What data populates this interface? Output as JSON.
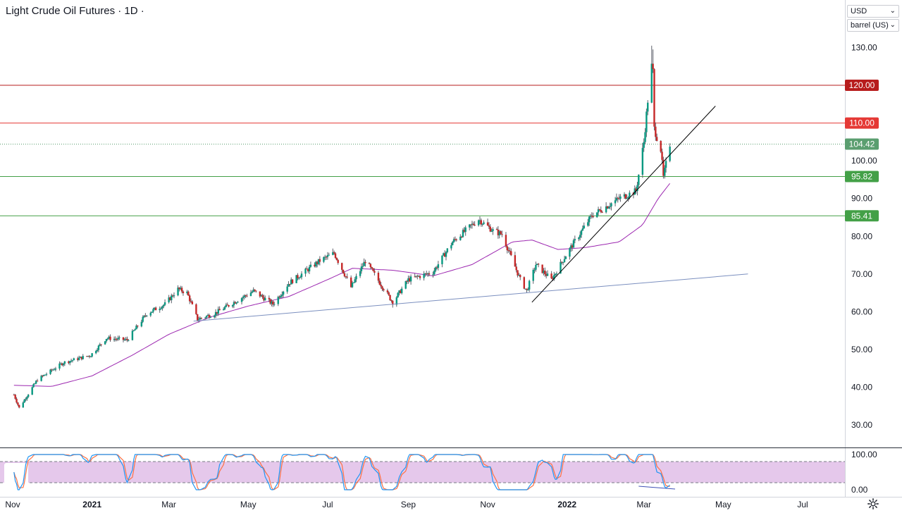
{
  "header": {
    "title": "Light Crude Oil Futures · 1D ·"
  },
  "controls": {
    "currency": "USD",
    "unit": "barrel (US)"
  },
  "icons": {
    "settings": "gear-icon",
    "dropdown": "chevron-down-icon"
  },
  "colors": {
    "up": "#26a69a",
    "down": "#ef5350",
    "candle_body_up": "#089981",
    "candle_body_down": "#c62828",
    "resistance_dark": "#b71c1c",
    "resistance": "#e53935",
    "support": "#43a047",
    "last_price": "#5a9e6f",
    "ma": "#9c27b0",
    "trendline": "#000000",
    "support_line": "#7b8fbf",
    "stoch_k": "#2196f3",
    "stoch_d": "#ff7043",
    "stoch_band": "#e1bee7"
  },
  "chart_data": {
    "type": "candlestick",
    "symbol": "Light Crude Oil Futures",
    "interval": "1D",
    "x_range": [
      "2020-11-01",
      "2022-07-31"
    ],
    "x_ticks": [
      {
        "date": "2020-11-01",
        "label": "Nov"
      },
      {
        "date": "2021-01-01",
        "label": "2021"
      },
      {
        "date": "2021-03-01",
        "label": "Mar"
      },
      {
        "date": "2021-05-01",
        "label": "May"
      },
      {
        "date": "2021-07-01",
        "label": "Jul"
      },
      {
        "date": "2021-09-01",
        "label": "Sep"
      },
      {
        "date": "2021-11-01",
        "label": "Nov"
      },
      {
        "date": "2022-01-01",
        "label": "2022"
      },
      {
        "date": "2022-03-01",
        "label": "Mar"
      },
      {
        "date": "2022-05-01",
        "label": "May"
      },
      {
        "date": "2022-07-01",
        "label": "Jul"
      }
    ],
    "y_range": [
      24,
      135
    ],
    "y_ticks": [
      30,
      40,
      50,
      60,
      70,
      80,
      90,
      100,
      110,
      120,
      130
    ],
    "y_tick_labels": [
      "30.00",
      "40.00",
      "50.00",
      "60.00",
      "70.00",
      "80.00",
      "90.00",
      "100.00",
      "110.00",
      "120.00",
      "130.00"
    ],
    "price_path": [
      [
        "2020-11-02",
        38.0
      ],
      [
        "2020-11-06",
        34.5
      ],
      [
        "2020-11-20",
        42.0
      ],
      [
        "2020-12-10",
        46.5
      ],
      [
        "2020-12-31",
        48.5
      ],
      [
        "2021-01-12",
        53.0
      ],
      [
        "2021-01-28",
        52.5
      ],
      [
        "2021-02-12",
        59.5
      ],
      [
        "2021-02-26",
        62.0
      ],
      [
        "2021-03-08",
        66.0
      ],
      [
        "2021-03-15",
        65.0
      ],
      [
        "2021-03-23",
        58.0
      ],
      [
        "2021-04-05",
        59.5
      ],
      [
        "2021-04-20",
        62.5
      ],
      [
        "2021-05-05",
        65.5
      ],
      [
        "2021-05-20",
        62.0
      ],
      [
        "2021-06-01",
        67.5
      ],
      [
        "2021-06-25",
        73.5
      ],
      [
        "2021-07-06",
        75.5
      ],
      [
        "2021-07-19",
        66.5
      ],
      [
        "2021-07-30",
        73.5
      ],
      [
        "2021-08-20",
        62.5
      ],
      [
        "2021-09-01",
        68.5
      ],
      [
        "2021-09-20",
        70.5
      ],
      [
        "2021-10-05",
        78.5
      ],
      [
        "2021-10-25",
        84.5
      ],
      [
        "2021-11-05",
        81.5
      ],
      [
        "2021-11-12",
        80.5
      ],
      [
        "2021-11-26",
        68.5
      ],
      [
        "2021-12-01",
        65.5
      ],
      [
        "2021-12-08",
        72.5
      ],
      [
        "2021-12-20",
        68.5
      ],
      [
        "2022-01-01",
        75.5
      ],
      [
        "2022-01-20",
        85.5
      ],
      [
        "2022-02-10",
        90.0
      ],
      [
        "2022-02-23",
        92.0
      ],
      [
        "2022-03-01",
        105.0
      ],
      [
        "2022-03-04",
        116.0
      ],
      [
        "2022-03-07",
        125.0
      ],
      [
        "2022-03-08",
        123.5
      ],
      [
        "2022-03-09",
        108.5
      ],
      [
        "2022-03-14",
        103.0
      ],
      [
        "2022-03-16",
        95.5
      ],
      [
        "2022-03-21",
        104.42
      ]
    ],
    "candle_spike_highs": [
      [
        "2022-03-07",
        130.5
      ],
      [
        "2022-03-08",
        129.5
      ]
    ],
    "moving_average": [
      [
        "2020-11-02",
        40.5
      ],
      [
        "2020-12-01",
        40.2
      ],
      [
        "2021-01-01",
        43.0
      ],
      [
        "2021-02-01",
        48.5
      ],
      [
        "2021-03-01",
        54.0
      ],
      [
        "2021-04-01",
        58.5
      ],
      [
        "2021-05-01",
        61.5
      ],
      [
        "2021-06-01",
        64.0
      ],
      [
        "2021-07-01",
        68.5
      ],
      [
        "2021-07-20",
        71.5
      ],
      [
        "2021-08-20",
        71.0
      ],
      [
        "2021-09-20",
        69.5
      ],
      [
        "2021-10-20",
        72.5
      ],
      [
        "2021-11-20",
        78.5
      ],
      [
        "2021-12-05",
        79.0
      ],
      [
        "2021-12-25",
        76.5
      ],
      [
        "2022-01-15",
        77.0
      ],
      [
        "2022-02-10",
        78.5
      ],
      [
        "2022-02-28",
        83.0
      ],
      [
        "2022-03-12",
        90.0
      ],
      [
        "2022-03-21",
        94.0
      ]
    ],
    "horizontal_levels": [
      {
        "label": "120.00",
        "value": 120.0,
        "color": "resistance_dark"
      },
      {
        "label": "110.00",
        "value": 110.0,
        "color": "resistance"
      },
      {
        "label": "104.42",
        "value": 104.42,
        "color": "last_price",
        "style": "dotted"
      },
      {
        "label": "95.82",
        "value": 95.82,
        "color": "support"
      },
      {
        "label": "85.41",
        "value": 85.41,
        "color": "support"
      }
    ],
    "trendlines": [
      {
        "color": "support_line",
        "points": [
          [
            "2021-03-20",
            57.5
          ],
          [
            "2022-05-20",
            70.0
          ]
        ]
      },
      {
        "color": "trendline",
        "points": [
          [
            "2021-12-05",
            62.5
          ],
          [
            "2022-04-25",
            114.5
          ]
        ]
      }
    ],
    "stochastic": {
      "y_range": [
        0,
        100
      ],
      "y_tick_labels": [
        "100.00",
        "0.00"
      ],
      "upper_band": 80,
      "lower_band": 20,
      "divergence_line": [
        [
          "2022-02-25",
          10
        ],
        [
          "2022-03-25",
          2
        ]
      ]
    }
  }
}
